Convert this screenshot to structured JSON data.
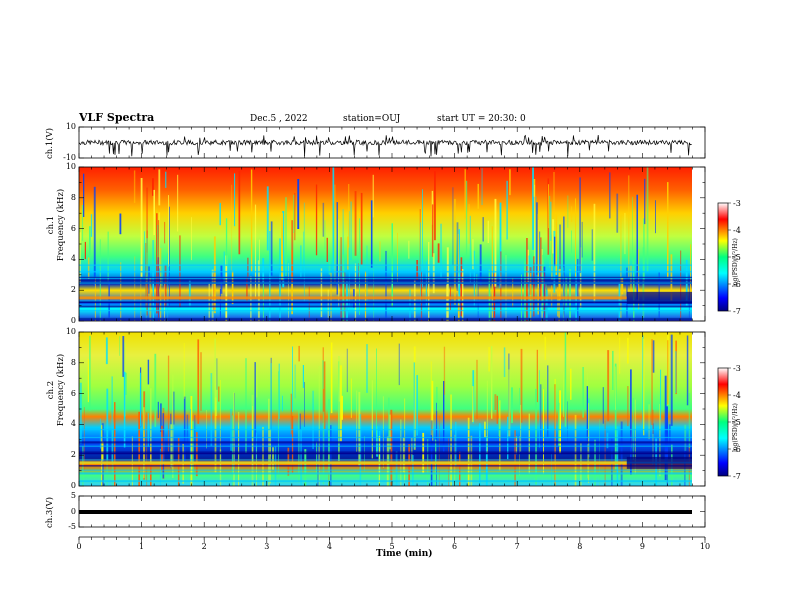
{
  "header": {
    "title": "VLF Spectra",
    "date": "Dec.5 , 2022",
    "station": "station=OUJ",
    "start_ut": "start UT = 20:30: 0"
  },
  "colors": {
    "spectrum_low": "#00007f",
    "spectrum_mid": "#00ff7f",
    "spectrum_high": "#ff0000"
  },
  "chart_data": [
    {
      "type": "line",
      "panel": "ch1-waveform",
      "ylabel": "ch.1(V)",
      "ylim": [
        -10,
        10
      ],
      "yticks": [
        "10",
        "-10"
      ],
      "xlim": [
        0,
        10
      ]
    },
    {
      "type": "heatmap",
      "panel": "ch1-spectrogram",
      "ylabel": "ch.1\nFrequency (kHz)",
      "ylim": [
        0,
        10
      ],
      "yticks": [
        "0",
        "2",
        "4",
        "6",
        "8",
        "10"
      ],
      "xlim": [
        0,
        10
      ],
      "colorbar": {
        "label": "log(PSD)(V²/Hz)",
        "range": [
          -7,
          -3
        ],
        "ticks": [
          "-3",
          "-4",
          "-5",
          "-6",
          "-7"
        ]
      }
    },
    {
      "type": "heatmap",
      "panel": "ch2-spectrogram",
      "ylabel": "ch.2\nFrequency (kHz)",
      "ylim": [
        0,
        10
      ],
      "yticks": [
        "0",
        "2",
        "4",
        "6",
        "8",
        "10"
      ],
      "xlim": [
        0,
        10
      ],
      "colorbar": {
        "label": "log(PSD)(V²/Hz)",
        "range": [
          -7,
          -3
        ],
        "ticks": [
          "-3",
          "-4",
          "-5",
          "-6",
          "-7"
        ]
      }
    },
    {
      "type": "line",
      "panel": "ch3-waveform",
      "ylabel": "ch.3(V)",
      "ylim": [
        -5,
        5
      ],
      "yticks": [
        "5",
        "0",
        "-5"
      ],
      "xlim": [
        0,
        10
      ],
      "xlabel": "Time (min)",
      "xticks": [
        "0",
        "1",
        "2",
        "3",
        "4",
        "5",
        "6",
        "7",
        "8",
        "9",
        "10"
      ]
    }
  ]
}
